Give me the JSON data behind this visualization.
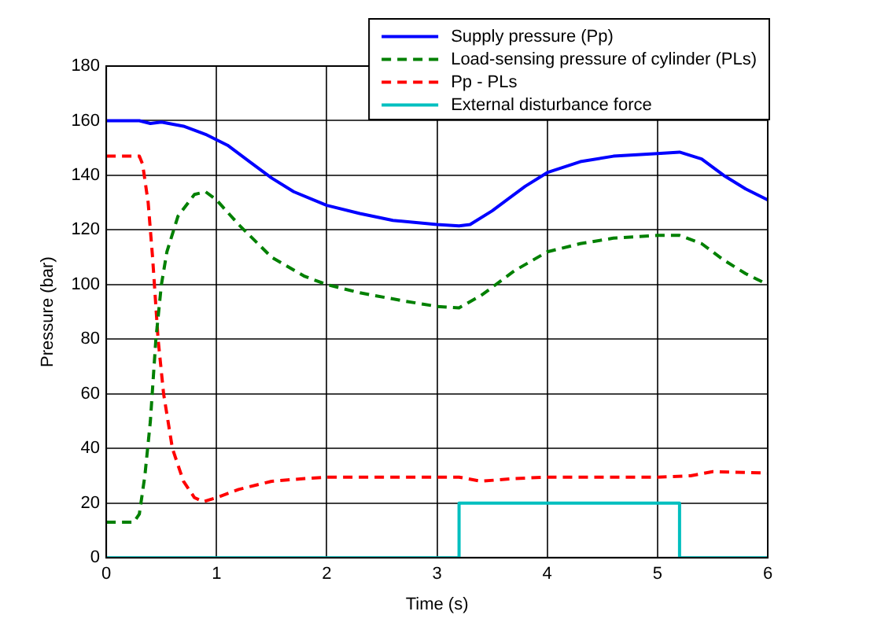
{
  "chart_data": {
    "type": "line",
    "xlabel": "Time (s)",
    "ylabel": "Pressure (bar)",
    "xlim": [
      0,
      6
    ],
    "xticks": [
      0,
      1,
      2,
      3,
      4,
      5,
      6
    ],
    "ylim": [
      0,
      180
    ],
    "yticks": [
      0,
      20,
      40,
      60,
      80,
      100,
      120,
      140,
      160,
      180
    ],
    "grid": true,
    "legend": "top right",
    "marker": "none",
    "series": [
      {
        "name": "Supply pressure (Pp)",
        "color": "#0000ff",
        "line_style": "solid",
        "x": [
          0,
          0.3,
          0.4,
          0.5,
          0.7,
          0.9,
          1.1,
          1.3,
          1.5,
          1.7,
          2,
          2.3,
          2.6,
          3,
          3.2,
          3.3,
          3.5,
          3.8,
          4,
          4.3,
          4.6,
          5,
          5.2,
          5.4,
          5.6,
          5.8,
          6
        ],
        "values": [
          160,
          160,
          159,
          159.5,
          158,
          155,
          151,
          145,
          139,
          134,
          129,
          126,
          123.5,
          122,
          121.5,
          122,
          127,
          136,
          141,
          145,
          147,
          148,
          148.5,
          146,
          140,
          135,
          131
        ]
      },
      {
        "name": "Load-sensing pressure of cylinder (PLs)",
        "color": "#008000",
        "line_style": "dashed",
        "x": [
          0,
          0.25,
          0.3,
          0.35,
          0.4,
          0.45,
          0.5,
          0.55,
          0.65,
          0.8,
          0.9,
          1,
          1.2,
          1.5,
          1.8,
          2,
          2.3,
          2.7,
          3,
          3.2,
          3.4,
          3.7,
          4,
          4.3,
          4.6,
          5,
          5.2,
          5.4,
          5.6,
          5.8,
          6
        ],
        "values": [
          13,
          13,
          16,
          30,
          50,
          80,
          100,
          112,
          125,
          133,
          134,
          131,
          122,
          110,
          103,
          100,
          97,
          94,
          92,
          91.5,
          96,
          105,
          112,
          115,
          117,
          118,
          118,
          115,
          109,
          104,
          100
        ]
      },
      {
        "name": "Pp - PLs",
        "color": "#ff0000",
        "line_style": "dashed",
        "x": [
          0,
          0.3,
          0.33,
          0.38,
          0.42,
          0.47,
          0.52,
          0.6,
          0.7,
          0.8,
          0.88,
          1,
          1.2,
          1.5,
          1.8,
          2,
          3,
          3.2,
          3.4,
          3.7,
          4,
          5,
          5.3,
          5.5,
          6
        ],
        "values": [
          147,
          147,
          144,
          130,
          110,
          80,
          60,
          40,
          28,
          22,
          20.5,
          22,
          25,
          28,
          29,
          29.5,
          29.5,
          29.5,
          28,
          29,
          29.5,
          29.5,
          30,
          31.5,
          31
        ]
      },
      {
        "name": "External disturbance force",
        "color": "#00bfbf",
        "line_style": "solid",
        "x": [
          0,
          3.2,
          3.2,
          5.2,
          5.2,
          6
        ],
        "values": [
          0,
          0,
          20,
          20,
          0,
          0
        ]
      }
    ]
  }
}
